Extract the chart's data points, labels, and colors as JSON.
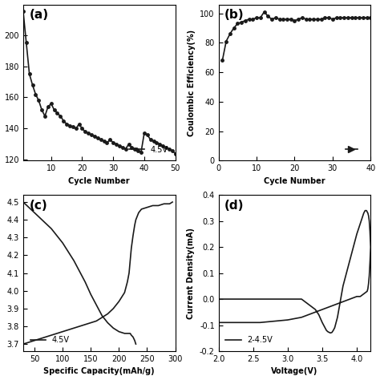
{
  "panel_a": {
    "label": "(a)",
    "xlabel": "Cycle Number",
    "xlim": [
      1,
      50
    ],
    "xticks": [
      10,
      20,
      30,
      40,
      50
    ],
    "legend": "4.5V",
    "cycles": [
      1,
      2,
      3,
      4,
      5,
      6,
      7,
      8,
      9,
      10,
      11,
      12,
      13,
      14,
      15,
      16,
      17,
      18,
      19,
      20,
      21,
      22,
      23,
      24,
      25,
      26,
      27,
      28,
      29,
      30,
      31,
      32,
      33,
      34,
      35,
      36,
      37,
      38,
      39,
      40,
      41,
      42,
      43,
      44,
      45,
      46,
      47,
      48,
      49,
      50
    ],
    "capacity": [
      215,
      195,
      175,
      168,
      162,
      158,
      152,
      148,
      154,
      156,
      152,
      150,
      148,
      145,
      143,
      142,
      141,
      140,
      143,
      140,
      138,
      137,
      136,
      135,
      134,
      133,
      132,
      131,
      133,
      131,
      130,
      129,
      128,
      127,
      130,
      128,
      127,
      126,
      125,
      137,
      136,
      133,
      132,
      131,
      130,
      129,
      128,
      127,
      126,
      124
    ]
  },
  "panel_b": {
    "label": "(b)",
    "xlabel": "Cycle Number",
    "ylabel": "Coulombic Efficiency(%)",
    "xlim": [
      0,
      40
    ],
    "ylim": [
      0,
      106
    ],
    "yticks": [
      0,
      20,
      40,
      60,
      80,
      100
    ],
    "cycles": [
      1,
      2,
      3,
      4,
      5,
      6,
      7,
      8,
      9,
      10,
      11,
      12,
      13,
      14,
      15,
      16,
      17,
      18,
      19,
      20,
      21,
      22,
      23,
      24,
      25,
      26,
      27,
      28,
      29,
      30,
      31,
      32,
      33,
      34,
      35,
      36,
      37,
      38,
      39,
      40
    ],
    "efficiency": [
      68,
      81,
      86,
      90,
      93,
      94,
      95,
      96,
      96,
      97,
      97,
      101,
      98,
      96,
      97,
      96,
      96,
      96,
      96,
      95,
      96,
      97,
      96,
      96,
      96,
      96,
      96,
      97,
      97,
      96,
      97,
      97,
      97,
      97,
      97,
      97,
      97,
      97,
      97,
      97
    ]
  },
  "panel_c": {
    "label": "(c)",
    "xlabel": "Specific Capacity(mAh/g)",
    "xlim": [
      30,
      300
    ],
    "xticks": [
      50,
      100,
      150,
      200,
      250,
      300
    ],
    "legend": "4.5V",
    "charge_x": [
      30,
      40,
      50,
      60,
      70,
      80,
      90,
      100,
      110,
      120,
      130,
      140,
      150,
      160,
      170,
      180,
      190,
      200,
      210,
      215,
      218,
      220,
      222,
      225,
      228,
      230
    ],
    "charge_y": [
      4.5,
      4.47,
      4.44,
      4.41,
      4.38,
      4.35,
      4.31,
      4.27,
      4.22,
      4.17,
      4.11,
      4.05,
      3.98,
      3.92,
      3.86,
      3.82,
      3.79,
      3.77,
      3.76,
      3.76,
      3.76,
      3.76,
      3.75,
      3.74,
      3.72,
      3.7
    ],
    "discharge_x": [
      30,
      40,
      50,
      60,
      70,
      80,
      90,
      100,
      110,
      120,
      130,
      140,
      150,
      160,
      170,
      180,
      190,
      200,
      210,
      215,
      218,
      220,
      222,
      225,
      228,
      230,
      235,
      240,
      250,
      260,
      270,
      280,
      290,
      295
    ],
    "discharge_y": [
      3.7,
      3.71,
      3.72,
      3.73,
      3.74,
      3.75,
      3.76,
      3.77,
      3.78,
      3.79,
      3.8,
      3.81,
      3.82,
      3.83,
      3.85,
      3.87,
      3.9,
      3.94,
      3.99,
      4.05,
      4.1,
      4.17,
      4.24,
      4.31,
      4.37,
      4.4,
      4.44,
      4.46,
      4.47,
      4.48,
      4.48,
      4.49,
      4.49,
      4.5
    ]
  },
  "panel_d": {
    "label": "(d)",
    "xlabel": "Voltage(V)",
    "ylabel": "Current Density(mA)",
    "xlim": [
      2.0,
      4.2
    ],
    "ylim": [
      -0.2,
      0.4
    ],
    "yticks": [
      -0.2,
      -0.1,
      0.0,
      0.1,
      0.2,
      0.3,
      0.4
    ],
    "ytick_labels": [
      "-0.2",
      "-0.1",
      "0.0",
      "0.1",
      "0.2",
      "0.3",
      "0.4"
    ],
    "xticks": [
      2.0,
      2.5,
      3.0,
      3.5,
      4.0
    ],
    "legend": "2-4.5V",
    "voltage": [
      2.0,
      2.1,
      2.2,
      2.3,
      2.4,
      2.5,
      2.6,
      2.7,
      2.8,
      2.9,
      3.0,
      3.1,
      3.2,
      3.25,
      3.3,
      3.35,
      3.4,
      3.45,
      3.5,
      3.52,
      3.54,
      3.56,
      3.58,
      3.6,
      3.62,
      3.64,
      3.66,
      3.68,
      3.7,
      3.72,
      3.74,
      3.76,
      3.78,
      3.8,
      3.85,
      3.9,
      3.95,
      4.0,
      4.05,
      4.1,
      4.12,
      4.14,
      4.15,
      4.16,
      4.17,
      4.18,
      4.19,
      4.2,
      4.19,
      4.18,
      4.17,
      4.16,
      4.15,
      4.1,
      4.05,
      4.0,
      3.95,
      3.9,
      3.85,
      3.8,
      3.75,
      3.7,
      3.65,
      3.6,
      3.55,
      3.5,
      3.45,
      3.4,
      3.35,
      3.3,
      3.25,
      3.2,
      3.1,
      3.0,
      2.8,
      2.6,
      2.4,
      2.2,
      2.0
    ],
    "current": [
      0.0,
      0.0,
      0.0,
      0.0,
      0.0,
      0.0,
      0.0,
      0.0,
      0.0,
      0.0,
      0.0,
      0.0,
      0.0,
      -0.01,
      -0.02,
      -0.03,
      -0.04,
      -0.06,
      -0.09,
      -0.1,
      -0.11,
      -0.12,
      -0.125,
      -0.128,
      -0.13,
      -0.128,
      -0.12,
      -0.11,
      -0.09,
      -0.07,
      -0.04,
      -0.01,
      0.02,
      0.05,
      0.1,
      0.15,
      0.2,
      0.25,
      0.29,
      0.33,
      0.34,
      0.34,
      0.335,
      0.33,
      0.32,
      0.3,
      0.26,
      0.2,
      0.14,
      0.09,
      0.06,
      0.04,
      0.03,
      0.02,
      0.01,
      0.01,
      0.005,
      0.0,
      -0.005,
      -0.01,
      -0.015,
      -0.02,
      -0.025,
      -0.03,
      -0.035,
      -0.04,
      -0.045,
      -0.05,
      -0.055,
      -0.06,
      -0.065,
      -0.07,
      -0.075,
      -0.08,
      -0.085,
      -0.09,
      -0.09,
      -0.09,
      -0.09
    ]
  },
  "line_color": "#1a1a1a",
  "marker": "o",
  "markersize": 2.5,
  "linewidth": 1.2
}
